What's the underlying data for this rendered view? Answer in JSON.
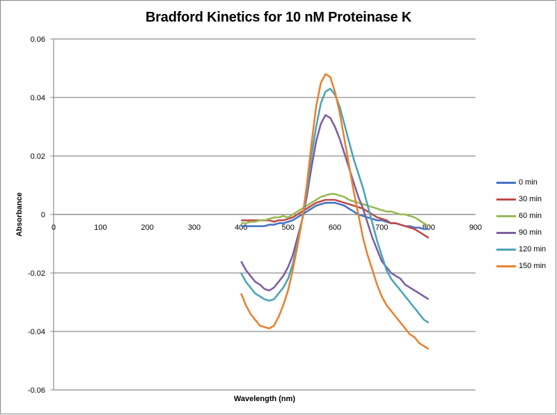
{
  "chart_data": {
    "type": "line",
    "title": "Bradford Kinetics for 10 nM Proteinase K",
    "xlabel": "Wavelength (nm)",
    "ylabel": "Absorbance",
    "xlim": [
      0,
      900
    ],
    "ylim": [
      -0.06,
      0.06
    ],
    "xticks": [
      "0",
      "100",
      "200",
      "300",
      "400",
      "500",
      "600",
      "700",
      "800",
      "900"
    ],
    "yticks": [
      "0.06",
      "0.04",
      "0.02",
      "0",
      "-0.02",
      "-0.04",
      "-0.06"
    ],
    "grid": "horizontal major gridlines",
    "legend_position": "right",
    "x": [
      400,
      410,
      420,
      430,
      440,
      450,
      460,
      470,
      480,
      490,
      500,
      510,
      520,
      530,
      540,
      550,
      560,
      570,
      580,
      590,
      600,
      610,
      620,
      630,
      640,
      650,
      660,
      670,
      680,
      690,
      700,
      710,
      720,
      730,
      740,
      750,
      760,
      770,
      780,
      790,
      800
    ],
    "series": [
      {
        "name": "0 min",
        "color": "#4573C4",
        "values": [
          -0.004,
          -0.004,
          -0.004,
          -0.004,
          -0.004,
          -0.004,
          -0.0035,
          -0.0035,
          -0.003,
          -0.003,
          -0.0025,
          -0.002,
          -0.001,
          0.0,
          0.001,
          0.002,
          0.003,
          0.0035,
          0.004,
          0.004,
          0.004,
          0.0035,
          0.003,
          0.002,
          0.001,
          0.0,
          -0.0005,
          -0.001,
          -0.0015,
          -0.002,
          -0.002,
          -0.0025,
          -0.003,
          -0.003,
          -0.0035,
          -0.004,
          -0.004,
          -0.0045,
          -0.0045,
          -0.005,
          -0.005
        ]
      },
      {
        "name": "30 min",
        "color": "#BE4B48",
        "values": [
          -0.002,
          -0.002,
          -0.002,
          -0.002,
          -0.002,
          -0.002,
          -0.002,
          -0.0025,
          -0.002,
          -0.002,
          -0.0015,
          -0.001,
          0.0,
          0.001,
          0.002,
          0.003,
          0.004,
          0.0045,
          0.005,
          0.005,
          0.005,
          0.0045,
          0.004,
          0.0035,
          0.003,
          0.0025,
          0.002,
          0.001,
          0.0,
          -0.001,
          -0.0015,
          -0.002,
          -0.003,
          -0.003,
          -0.0035,
          -0.004,
          -0.0045,
          -0.005,
          -0.006,
          -0.007,
          -0.008
        ]
      },
      {
        "name": "60 min",
        "color": "#98B954",
        "values": [
          -0.003,
          -0.003,
          -0.0025,
          -0.0025,
          -0.002,
          -0.002,
          -0.0015,
          -0.001,
          -0.001,
          -0.0005,
          -0.001,
          0.0,
          0.001,
          0.002,
          0.003,
          0.004,
          0.005,
          0.006,
          0.0065,
          0.007,
          0.007,
          0.0065,
          0.006,
          0.005,
          0.0045,
          0.004,
          0.0035,
          0.003,
          0.0025,
          0.002,
          0.0015,
          0.001,
          0.001,
          0.0005,
          0.0,
          0.0,
          -0.0005,
          -0.001,
          -0.002,
          -0.003,
          -0.004
        ]
      },
      {
        "name": "90 min",
        "color": "#7D5FA0",
        "values": [
          -0.016,
          -0.019,
          -0.021,
          -0.023,
          -0.024,
          -0.0255,
          -0.026,
          -0.025,
          -0.023,
          -0.021,
          -0.018,
          -0.014,
          -0.008,
          -0.002,
          0.006,
          0.016,
          0.025,
          0.031,
          0.034,
          0.033,
          0.03,
          0.026,
          0.021,
          0.016,
          0.011,
          0.006,
          0.002,
          -0.003,
          -0.008,
          -0.012,
          -0.016,
          -0.018,
          -0.02,
          -0.021,
          -0.022,
          -0.024,
          -0.025,
          -0.026,
          -0.027,
          -0.028,
          -0.029
        ]
      },
      {
        "name": "120 min",
        "color": "#4AA3BA",
        "values": [
          -0.02,
          -0.023,
          -0.025,
          -0.027,
          -0.028,
          -0.029,
          -0.0295,
          -0.029,
          -0.027,
          -0.025,
          -0.022,
          -0.017,
          -0.01,
          -0.002,
          0.008,
          0.02,
          0.03,
          0.038,
          0.042,
          0.043,
          0.041,
          0.037,
          0.031,
          0.025,
          0.019,
          0.014,
          0.009,
          0.003,
          -0.003,
          -0.009,
          -0.014,
          -0.019,
          -0.022,
          -0.024,
          -0.026,
          -0.028,
          -0.03,
          -0.032,
          -0.034,
          -0.036,
          -0.037
        ]
      },
      {
        "name": "150 min",
        "color": "#E8822F",
        "values": [
          -0.027,
          -0.031,
          -0.034,
          -0.036,
          -0.038,
          -0.0385,
          -0.039,
          -0.038,
          -0.035,
          -0.031,
          -0.026,
          -0.019,
          -0.011,
          -0.002,
          0.01,
          0.024,
          0.037,
          0.045,
          0.048,
          0.047,
          0.042,
          0.035,
          0.026,
          0.017,
          0.008,
          0.0,
          -0.008,
          -0.014,
          -0.019,
          -0.024,
          -0.028,
          -0.031,
          -0.033,
          -0.035,
          -0.037,
          -0.039,
          -0.041,
          -0.042,
          -0.044,
          -0.045,
          -0.046
        ]
      }
    ]
  }
}
